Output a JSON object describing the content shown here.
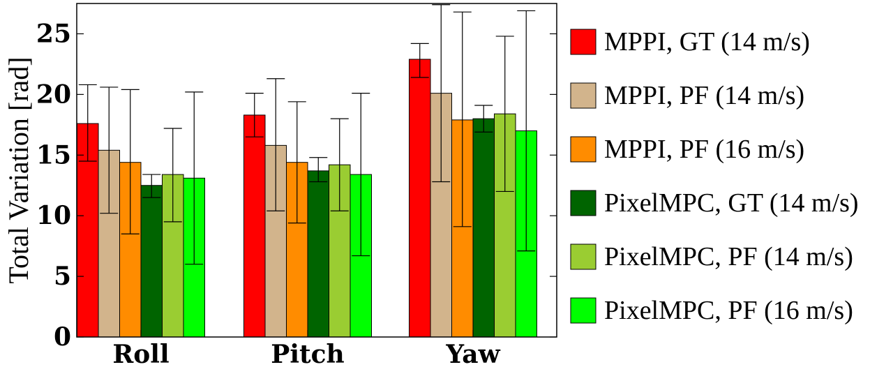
{
  "chart_data": {
    "type": "bar",
    "categories": [
      "Roll",
      "Pitch",
      "Yaw"
    ],
    "ylabel": "Total Variation [rad]",
    "xlabel": "",
    "ylim": [
      0,
      27.5
    ],
    "yticks": [
      0,
      5,
      10,
      15,
      20,
      25
    ],
    "grid": false,
    "legend_position": "right",
    "series": [
      {
        "name": "MPPI, GT (14 m/s)",
        "color": "#ff0000",
        "values": [
          17.6,
          18.3,
          22.9
        ],
        "err_low": [
          14.5,
          16.5,
          21.4
        ],
        "err_high": [
          20.8,
          20.1,
          24.2
        ]
      },
      {
        "name": "MPPI, PF (14 m/s)",
        "color": "#d2b48c",
        "values": [
          15.4,
          15.8,
          20.1
        ],
        "err_low": [
          10.2,
          10.4,
          12.8
        ],
        "err_high": [
          20.6,
          21.3,
          27.4
        ]
      },
      {
        "name": "MPPI, PF (16 m/s)",
        "color": "#ff8c00",
        "values": [
          14.4,
          14.4,
          17.9
        ],
        "err_low": [
          8.5,
          9.4,
          9.1
        ],
        "err_high": [
          20.4,
          19.4,
          26.8
        ]
      },
      {
        "name": "PixelMPC, GT (14 m/s)",
        "color": "#006400",
        "values": [
          12.5,
          13.7,
          18.0
        ],
        "err_low": [
          11.5,
          12.8,
          16.9
        ],
        "err_high": [
          13.4,
          14.8,
          19.1
        ]
      },
      {
        "name": "PixelMPC, PF (14 m/s)",
        "color": "#9acd32",
        "values": [
          13.4,
          14.2,
          18.4
        ],
        "err_low": [
          9.5,
          10.4,
          12.0
        ],
        "err_high": [
          17.2,
          18.0,
          24.8
        ]
      },
      {
        "name": "PixelMPC, PF (16 m/s)",
        "color": "#00ff00",
        "values": [
          13.1,
          13.4,
          17.0
        ],
        "err_low": [
          6.0,
          6.7,
          7.1
        ],
        "err_high": [
          20.2,
          20.1,
          26.9
        ]
      }
    ]
  }
}
